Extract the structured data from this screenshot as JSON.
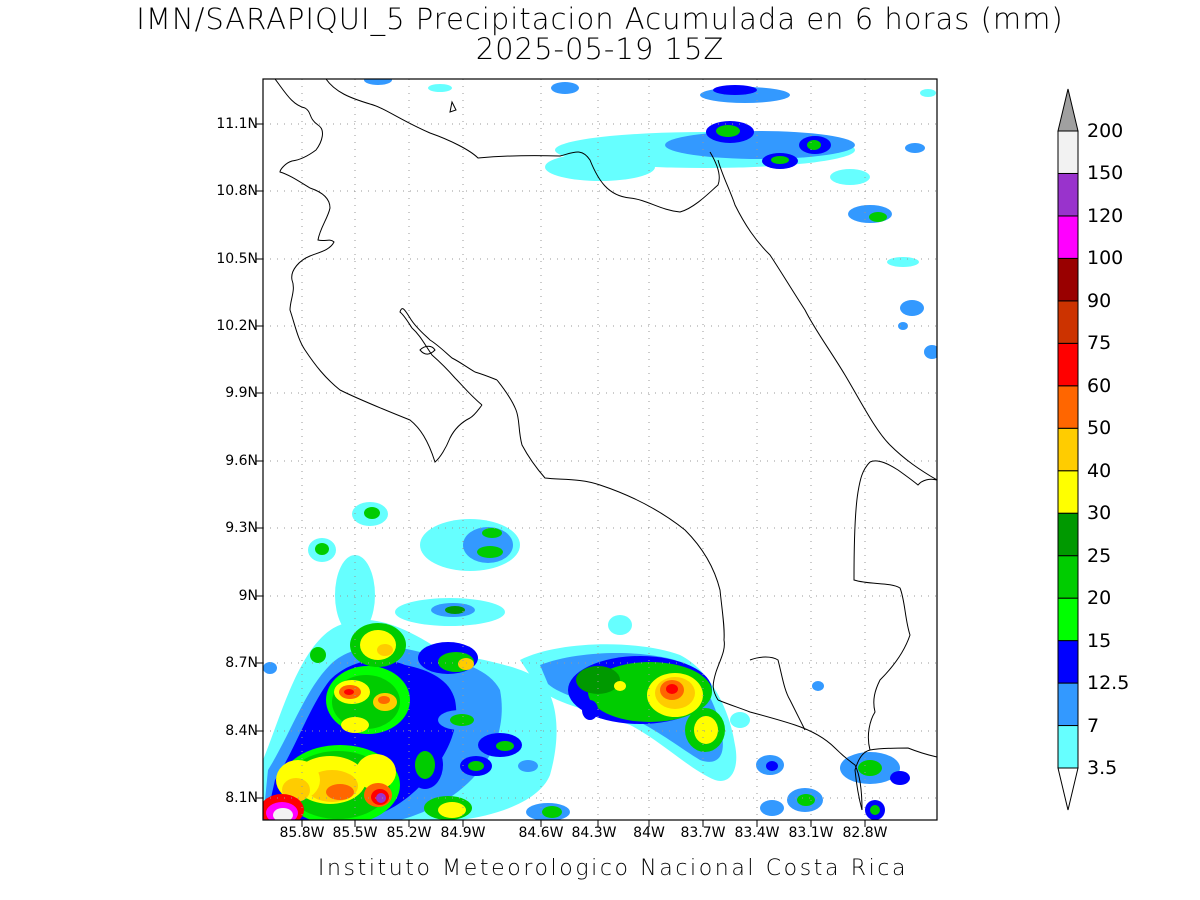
{
  "title_line1": "IMN/SARAPIQUI_5 Precipitacion Acumulada en 6 horas (mm)",
  "title_line2": "2025-05-19 15Z",
  "credit": "Instituto Meteorologico Nacional Costa Rica",
  "axes": {
    "lat_ticks": [
      "11.1N",
      "10.8N",
      "10.5N",
      "10.2N",
      "9.9N",
      "9.6N",
      "9.3N",
      "9N",
      "8.7N",
      "8.4N",
      "8.1N"
    ],
    "lon_ticks": [
      "85.8W",
      "85.5W",
      "85.2W",
      "84.9W",
      "84.6W",
      "84.3W",
      "84W",
      "83.7W",
      "83.4W",
      "83.1W",
      "82.8W"
    ],
    "lat_range": [
      8.0,
      11.3
    ],
    "lon_range": [
      -86.03,
      -82.55
    ]
  },
  "colorbar": {
    "labels": [
      "3.5",
      "7",
      "12.5",
      "15",
      "20",
      "25",
      "30",
      "40",
      "50",
      "60",
      "75",
      "90",
      "100",
      "120",
      "150",
      "200"
    ],
    "colors": [
      "#66ffff",
      "#3399ff",
      "#0000ff",
      "#00ff00",
      "#00cc00",
      "#009900",
      "#ffff00",
      "#ffcc00",
      "#ff6600",
      "#ff0000",
      "#cc3300",
      "#990000",
      "#ff00ff",
      "#9933cc",
      "#f2f2f2"
    ],
    "under_color": "#ffffff",
    "over_color": "#a0a0a0"
  }
}
